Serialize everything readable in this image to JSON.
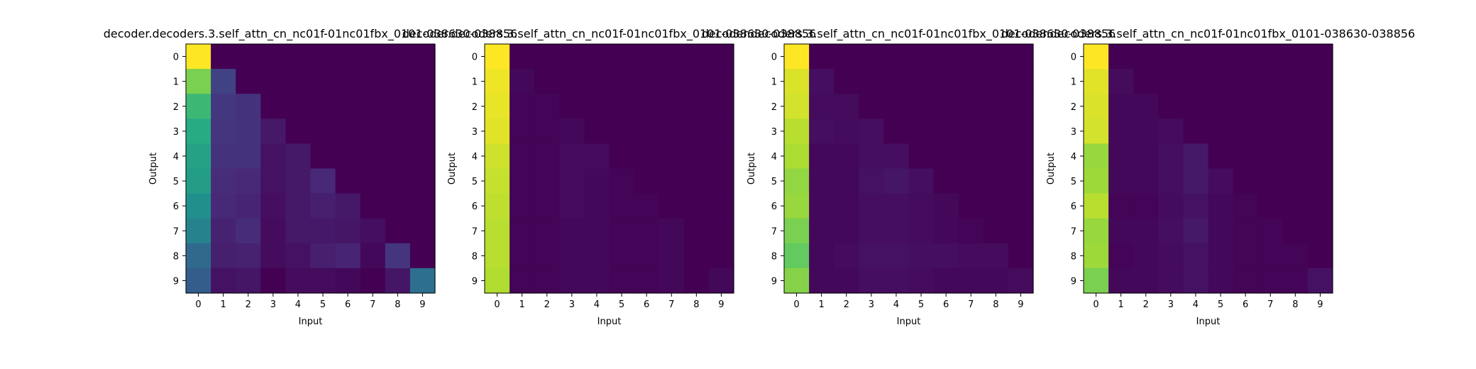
{
  "chart_data": [
    {
      "type": "heatmap",
      "title": "decoder.decoders.3.self_attn_cn_nc01f-01nc01fbx_0101-038630-038856",
      "xlabel": "Input",
      "ylabel": "Output",
      "x_ticks": [
        "0",
        "1",
        "2",
        "3",
        "4",
        "5",
        "6",
        "7",
        "8",
        "9"
      ],
      "y_ticks": [
        "0",
        "1",
        "2",
        "3",
        "4",
        "5",
        "6",
        "7",
        "8",
        "9"
      ],
      "colormap": "viridis",
      "vmin": 0,
      "vmax": 1,
      "values": [
        [
          1.0,
          0.0,
          0.0,
          0.0,
          0.0,
          0.0,
          0.0,
          0.0,
          0.0,
          0.0
        ],
        [
          0.8,
          0.2,
          0.0,
          0.0,
          0.0,
          0.0,
          0.0,
          0.0,
          0.0,
          0.0
        ],
        [
          0.68,
          0.17,
          0.15,
          0.0,
          0.0,
          0.0,
          0.0,
          0.0,
          0.0,
          0.0
        ],
        [
          0.62,
          0.16,
          0.15,
          0.07,
          0.0,
          0.0,
          0.0,
          0.0,
          0.0,
          0.0
        ],
        [
          0.58,
          0.15,
          0.15,
          0.05,
          0.07,
          0.0,
          0.0,
          0.0,
          0.0,
          0.0
        ],
        [
          0.56,
          0.13,
          0.12,
          0.05,
          0.07,
          0.12,
          0.0,
          0.0,
          0.0,
          0.0
        ],
        [
          0.5,
          0.12,
          0.11,
          0.04,
          0.07,
          0.09,
          0.07,
          0.0,
          0.0,
          0.0
        ],
        [
          0.45,
          0.1,
          0.13,
          0.03,
          0.07,
          0.07,
          0.06,
          0.04,
          0.0,
          0.0
        ],
        [
          0.35,
          0.09,
          0.1,
          0.03,
          0.05,
          0.09,
          0.11,
          0.02,
          0.16,
          0.0
        ],
        [
          0.3,
          0.05,
          0.06,
          0.0,
          0.03,
          0.03,
          0.02,
          0.0,
          0.06,
          0.37
        ]
      ]
    },
    {
      "type": "heatmap",
      "title": "decoder.decoders.3.self_attn_cn_nc01f-01nc01fbx_0101-038630-038856",
      "xlabel": "Input",
      "ylabel": "Output",
      "x_ticks": [
        "0",
        "1",
        "2",
        "3",
        "4",
        "5",
        "6",
        "7",
        "8",
        "9"
      ],
      "y_ticks": [
        "0",
        "1",
        "2",
        "3",
        "4",
        "5",
        "6",
        "7",
        "8",
        "9"
      ],
      "colormap": "viridis",
      "vmin": 0,
      "vmax": 1,
      "values": [
        [
          1.0,
          0.0,
          0.0,
          0.0,
          0.0,
          0.0,
          0.0,
          0.0,
          0.0,
          0.0
        ],
        [
          0.98,
          0.02,
          0.0,
          0.0,
          0.0,
          0.0,
          0.0,
          0.0,
          0.0,
          0.0
        ],
        [
          0.97,
          0.01,
          0.01,
          0.0,
          0.0,
          0.0,
          0.0,
          0.0,
          0.0,
          0.0
        ],
        [
          0.96,
          0.01,
          0.01,
          0.02,
          0.0,
          0.0,
          0.0,
          0.0,
          0.0,
          0.0
        ],
        [
          0.93,
          0.01,
          0.01,
          0.03,
          0.03,
          0.0,
          0.0,
          0.0,
          0.0,
          0.0
        ],
        [
          0.92,
          0.01,
          0.01,
          0.03,
          0.02,
          0.01,
          0.0,
          0.0,
          0.0,
          0.0
        ],
        [
          0.91,
          0.01,
          0.01,
          0.03,
          0.02,
          0.01,
          0.01,
          0.0,
          0.0,
          0.0
        ],
        [
          0.9,
          0.01,
          0.01,
          0.02,
          0.02,
          0.01,
          0.01,
          0.02,
          0.0,
          0.0
        ],
        [
          0.9,
          0.01,
          0.01,
          0.02,
          0.02,
          0.01,
          0.01,
          0.02,
          0.0,
          0.0
        ],
        [
          0.89,
          0.01,
          0.01,
          0.02,
          0.02,
          0.01,
          0.01,
          0.02,
          0.0,
          0.02
        ]
      ]
    },
    {
      "type": "heatmap",
      "title": "decoder.decoders.3.self_attn_cn_nc01f-01nc01fbx_0101-038630-038856",
      "xlabel": "Input",
      "ylabel": "Output",
      "x_ticks": [
        "0",
        "1",
        "2",
        "3",
        "4",
        "5",
        "6",
        "7",
        "8",
        "9"
      ],
      "y_ticks": [
        "0",
        "1",
        "2",
        "3",
        "4",
        "5",
        "6",
        "7",
        "8",
        "9"
      ],
      "colormap": "viridis",
      "vmin": 0,
      "vmax": 1,
      "values": [
        [
          1.0,
          0.0,
          0.0,
          0.0,
          0.0,
          0.0,
          0.0,
          0.0,
          0.0,
          0.0
        ],
        [
          0.95,
          0.04,
          0.0,
          0.0,
          0.0,
          0.0,
          0.0,
          0.0,
          0.0,
          0.0
        ],
        [
          0.94,
          0.03,
          0.03,
          0.0,
          0.0,
          0.0,
          0.0,
          0.0,
          0.0,
          0.0
        ],
        [
          0.9,
          0.04,
          0.03,
          0.04,
          0.0,
          0.0,
          0.0,
          0.0,
          0.0,
          0.0
        ],
        [
          0.88,
          0.02,
          0.02,
          0.04,
          0.04,
          0.0,
          0.0,
          0.0,
          0.0,
          0.0
        ],
        [
          0.84,
          0.02,
          0.02,
          0.05,
          0.06,
          0.04,
          0.0,
          0.0,
          0.0,
          0.0
        ],
        [
          0.85,
          0.02,
          0.02,
          0.04,
          0.04,
          0.03,
          0.02,
          0.0,
          0.0,
          0.0
        ],
        [
          0.8,
          0.02,
          0.02,
          0.04,
          0.04,
          0.03,
          0.02,
          0.01,
          0.0,
          0.0
        ],
        [
          0.76,
          0.02,
          0.03,
          0.05,
          0.05,
          0.04,
          0.04,
          0.03,
          0.03,
          0.0
        ],
        [
          0.82,
          0.02,
          0.02,
          0.04,
          0.04,
          0.03,
          0.02,
          0.02,
          0.02,
          0.03
        ]
      ]
    },
    {
      "type": "heatmap",
      "title": "decoder.decoders.3.self_attn_cn_nc01f-01nc01fbx_0101-038630-038856",
      "xlabel": "Input",
      "ylabel": "Output",
      "x_ticks": [
        "0",
        "1",
        "2",
        "3",
        "4",
        "5",
        "6",
        "7",
        "8",
        "9"
      ],
      "y_ticks": [
        "0",
        "1",
        "2",
        "3",
        "4",
        "5",
        "6",
        "7",
        "8",
        "9"
      ],
      "colormap": "viridis",
      "vmin": 0,
      "vmax": 1,
      "values": [
        [
          1.0,
          0.0,
          0.0,
          0.0,
          0.0,
          0.0,
          0.0,
          0.0,
          0.0,
          0.0
        ],
        [
          0.96,
          0.03,
          0.0,
          0.0,
          0.0,
          0.0,
          0.0,
          0.0,
          0.0,
          0.0
        ],
        [
          0.95,
          0.02,
          0.02,
          0.0,
          0.0,
          0.0,
          0.0,
          0.0,
          0.0,
          0.0
        ],
        [
          0.94,
          0.02,
          0.02,
          0.03,
          0.0,
          0.0,
          0.0,
          0.0,
          0.0,
          0.0
        ],
        [
          0.85,
          0.02,
          0.02,
          0.04,
          0.07,
          0.0,
          0.0,
          0.0,
          0.0,
          0.0
        ],
        [
          0.86,
          0.02,
          0.02,
          0.04,
          0.07,
          0.03,
          0.0,
          0.0,
          0.0,
          0.0
        ],
        [
          0.9,
          0.01,
          0.01,
          0.03,
          0.05,
          0.02,
          0.01,
          0.0,
          0.0,
          0.0
        ],
        [
          0.85,
          0.02,
          0.02,
          0.04,
          0.07,
          0.02,
          0.01,
          0.01,
          0.0,
          0.0
        ],
        [
          0.86,
          0.01,
          0.02,
          0.03,
          0.05,
          0.02,
          0.01,
          0.01,
          0.01,
          0.0
        ],
        [
          0.8,
          0.02,
          0.02,
          0.03,
          0.05,
          0.02,
          0.01,
          0.01,
          0.01,
          0.05
        ]
      ]
    }
  ]
}
